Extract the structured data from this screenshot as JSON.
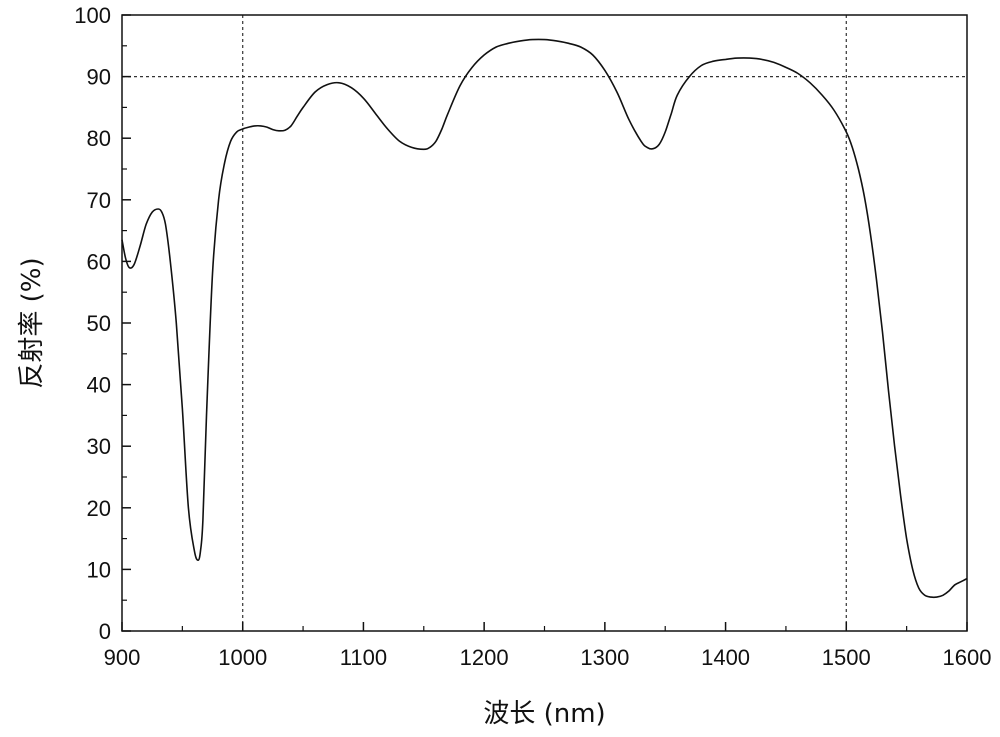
{
  "chart_data": {
    "type": "line",
    "xlabel": "波长 (nm)",
    "ylabel": "反射率 (%)",
    "xlim": [
      900,
      1600
    ],
    "ylim": [
      0,
      100
    ],
    "x_ticks": [
      900,
      1000,
      1100,
      1200,
      1300,
      1400,
      1500,
      1600
    ],
    "y_ticks": [
      0,
      10,
      20,
      30,
      40,
      50,
      60,
      70,
      80,
      90,
      100
    ],
    "grid": false,
    "reference_lines": {
      "vertical_x": [
        1000,
        1500
      ],
      "horizontal_y": [
        90
      ]
    },
    "series": [
      {
        "line_color": "#111111",
        "x": [
          900,
          903,
          906,
          910,
          915,
          920,
          925,
          930,
          933,
          936,
          940,
          945,
          950,
          955,
          960,
          963,
          965,
          967,
          970,
          975,
          980,
          985,
          990,
          995,
          1000,
          1005,
          1010,
          1015,
          1020,
          1025,
          1030,
          1035,
          1040,
          1045,
          1050,
          1060,
          1070,
          1080,
          1090,
          1100,
          1110,
          1120,
          1130,
          1140,
          1150,
          1155,
          1160,
          1165,
          1170,
          1180,
          1190,
          1200,
          1210,
          1220,
          1230,
          1240,
          1250,
          1260,
          1270,
          1280,
          1290,
          1300,
          1310,
          1320,
          1330,
          1335,
          1340,
          1345,
          1350,
          1355,
          1360,
          1370,
          1380,
          1390,
          1400,
          1410,
          1420,
          1430,
          1440,
          1450,
          1460,
          1470,
          1480,
          1490,
          1500,
          1505,
          1510,
          1515,
          1520,
          1525,
          1530,
          1535,
          1540,
          1545,
          1550,
          1555,
          1560,
          1565,
          1570,
          1575,
          1580,
          1585,
          1590,
          1595,
          1600
        ],
        "y": [
          63.5,
          60.5,
          59,
          59.5,
          62.5,
          66,
          68,
          68.5,
          68,
          66,
          60,
          50,
          36,
          20,
          13,
          11.5,
          13,
          18,
          35,
          58,
          70,
          76,
          79.5,
          81,
          81.5,
          81.8,
          82,
          82,
          81.8,
          81.4,
          81.2,
          81.3,
          82,
          83.5,
          85,
          87.5,
          88.7,
          89,
          88.2,
          86.5,
          84,
          81.5,
          79.5,
          78.5,
          78.2,
          78.5,
          79.5,
          81.5,
          84,
          88.5,
          91.5,
          93.5,
          94.8,
          95.4,
          95.8,
          96,
          96,
          95.8,
          95.4,
          94.8,
          93.5,
          91,
          87.5,
          83,
          79.5,
          78.5,
          78.3,
          79,
          81,
          84,
          87,
          90,
          91.8,
          92.5,
          92.8,
          93,
          93,
          92.8,
          92.3,
          91.5,
          90.5,
          89,
          87,
          84.5,
          81,
          78.5,
          75,
          70.5,
          64.5,
          57,
          48.5,
          39,
          30,
          22,
          15,
          10,
          7,
          5.8,
          5.5,
          5.5,
          5.8,
          6.5,
          7.5,
          8,
          8.5
        ]
      }
    ]
  },
  "colors": {
    "axis": "#111111",
    "line": "#111111",
    "reference_lines": "#333333",
    "background": "#ffffff"
  }
}
